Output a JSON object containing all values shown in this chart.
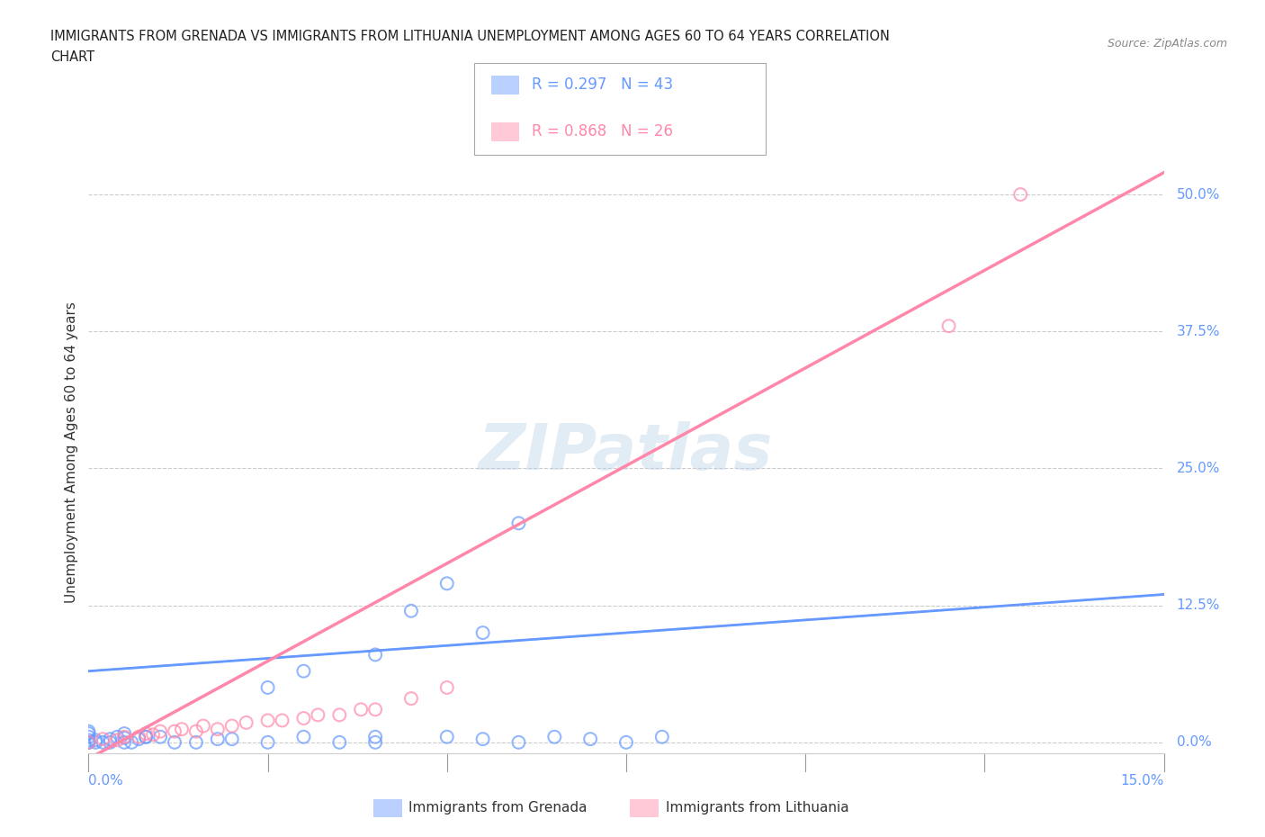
{
  "title_line1": "IMMIGRANTS FROM GRENADA VS IMMIGRANTS FROM LITHUANIA UNEMPLOYMENT AMONG AGES 60 TO 64 YEARS CORRELATION",
  "title_line2": "CHART",
  "source_text": "Source: ZipAtlas.com",
  "xlabel_bottom_left": "0.0%",
  "xlabel_bottom_right": "15.0%",
  "ylabel": "Unemployment Among Ages 60 to 64 years",
  "ytick_labels": [
    "0.0%",
    "12.5%",
    "25.0%",
    "37.5%",
    "50.0%"
  ],
  "ytick_values": [
    0.0,
    0.125,
    0.25,
    0.375,
    0.5
  ],
  "xlim": [
    0.0,
    0.15
  ],
  "ylim": [
    -0.01,
    0.54
  ],
  "grenada_color": "#6699ff",
  "lithuania_color": "#ff88aa",
  "grenada_R": 0.297,
  "grenada_N": 43,
  "lithuania_R": 0.868,
  "lithuania_N": 26,
  "legend_label_grenada": "Immigrants from Grenada",
  "legend_label_lithuania": "Immigrants from Lithuania",
  "watermark": "ZIPatlas",
  "grenada_x": [
    0.0,
    0.0,
    0.003,
    0.003,
    0.005,
    0.005,
    0.007,
    0.008,
    0.0,
    0.0,
    0.0,
    0.002,
    0.004,
    0.005,
    0.0,
    0.001,
    0.001,
    0.006,
    0.008,
    0.01,
    0.012,
    0.015,
    0.018,
    0.02,
    0.025,
    0.03,
    0.035,
    0.04,
    0.04,
    0.05,
    0.055,
    0.06,
    0.065,
    0.07,
    0.075,
    0.08,
    0.025,
    0.03,
    0.04,
    0.045,
    0.05,
    0.055,
    0.06
  ],
  "grenada_y": [
    0.0,
    0.002,
    0.0,
    0.003,
    0.0,
    0.004,
    0.003,
    0.005,
    0.005,
    0.008,
    0.01,
    0.0,
    0.005,
    0.008,
    0.0,
    0.0,
    0.002,
    0.0,
    0.005,
    0.005,
    0.0,
    0.0,
    0.003,
    0.003,
    0.0,
    0.005,
    0.0,
    0.005,
    0.0,
    0.005,
    0.003,
    0.0,
    0.005,
    0.003,
    0.0,
    0.005,
    0.05,
    0.065,
    0.08,
    0.12,
    0.145,
    0.1,
    0.2
  ],
  "lithuania_x": [
    0.0,
    0.002,
    0.004,
    0.005,
    0.007,
    0.008,
    0.009,
    0.01,
    0.012,
    0.013,
    0.015,
    0.016,
    0.018,
    0.02,
    0.022,
    0.025,
    0.027,
    0.03,
    0.032,
    0.035,
    0.038,
    0.04,
    0.045,
    0.05,
    0.12,
    0.13
  ],
  "lithuania_y": [
    0.0,
    0.003,
    0.002,
    0.005,
    0.005,
    0.008,
    0.007,
    0.01,
    0.01,
    0.012,
    0.01,
    0.015,
    0.012,
    0.015,
    0.018,
    0.02,
    0.02,
    0.022,
    0.025,
    0.025,
    0.03,
    0.03,
    0.04,
    0.05,
    0.38,
    0.5
  ],
  "grenada_trend_x0": 0.0,
  "grenada_trend_x1": 0.15,
  "grenada_trend_y0": 0.065,
  "grenada_trend_y1": 0.135,
  "lithuania_trend_x0": 0.0,
  "lithuania_trend_x1": 0.15,
  "lithuania_trend_y0": -0.015,
  "lithuania_trend_y1": 0.52
}
